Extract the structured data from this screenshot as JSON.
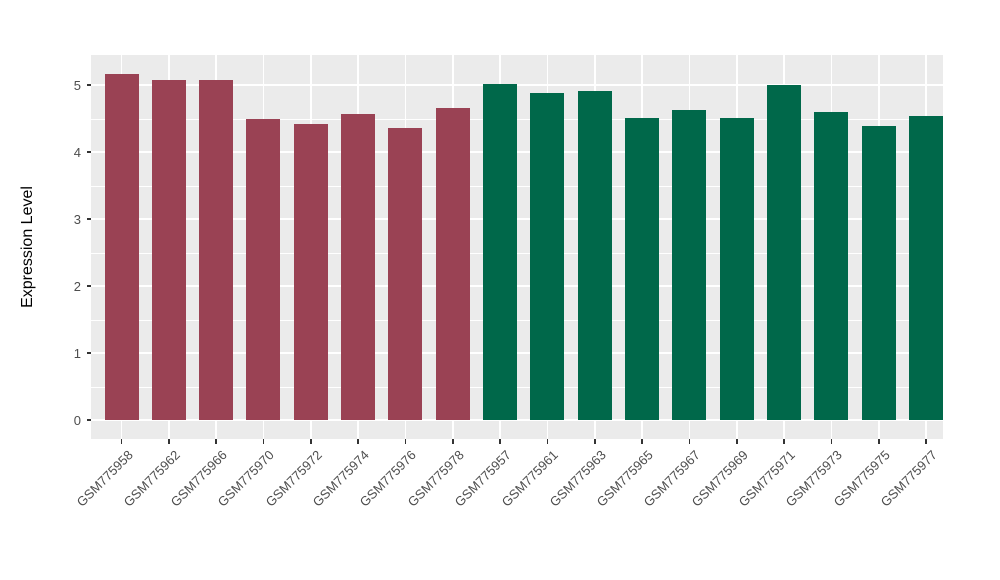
{
  "chart_data": {
    "type": "bar",
    "title": "",
    "xlabel": "",
    "ylabel": "Expression Level",
    "categories": [
      "GSM775958",
      "GSM775962",
      "GSM775966",
      "GSM775970",
      "GSM775972",
      "GSM775974",
      "GSM775976",
      "GSM775978",
      "GSM775957",
      "GSM775961",
      "GSM775963",
      "GSM775965",
      "GSM775967",
      "GSM775969",
      "GSM775971",
      "GSM775973",
      "GSM775975",
      "GSM775977"
    ],
    "values": [
      5.16,
      5.07,
      5.07,
      4.5,
      4.42,
      4.57,
      4.36,
      4.65,
      5.02,
      4.88,
      4.91,
      4.51,
      4.62,
      4.51,
      5.0,
      4.59,
      4.39,
      4.54
    ],
    "bar_colors": [
      "#9A4254",
      "#9A4254",
      "#9A4254",
      "#9A4254",
      "#9A4254",
      "#9A4254",
      "#9A4254",
      "#9A4254",
      "#00684A",
      "#00684A",
      "#00684A",
      "#00684A",
      "#00684A",
      "#00684A",
      "#00684A",
      "#00684A",
      "#00684A",
      "#00684A"
    ],
    "group_colors": {
      "maroon": "#9A4254",
      "green": "#00684A"
    },
    "yticks": [
      0,
      1,
      2,
      3,
      4,
      5
    ],
    "yticks_minor": [
      0.5,
      1.5,
      2.5,
      3.5,
      4.5
    ],
    "ylim": [
      0,
      5.45
    ],
    "grid": "on",
    "legend": "none",
    "panel_background": "#EBEBEB",
    "grid_color": "#FFFFFF",
    "tick_text_color": "#4D4D4D"
  }
}
